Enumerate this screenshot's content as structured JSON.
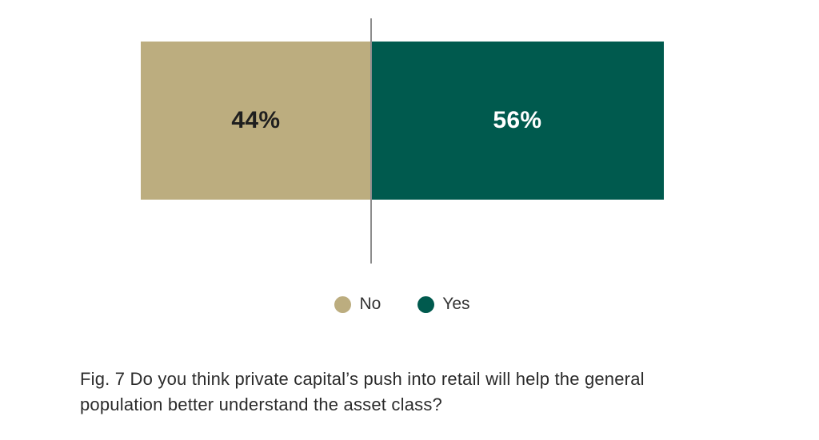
{
  "chart_data": {
    "type": "bar",
    "subtype": "100-percent-stacked-horizontal",
    "categories": [
      "No",
      "Yes"
    ],
    "values": [
      44,
      56
    ],
    "value_labels": [
      "44%",
      "56%"
    ],
    "series_colors": [
      "#bcad7f",
      "#005a4e"
    ],
    "value_label_colors": [
      "#1f1f1f",
      "#ffffff"
    ],
    "legend": {
      "position": "bottom",
      "items": [
        {
          "label": "No",
          "color": "#bcad7f"
        },
        {
          "label": "Yes",
          "color": "#005a4e"
        }
      ]
    },
    "divider": {
      "at_percent": 44,
      "color": "#8c8c8c"
    },
    "caption": "Fig. 7 Do you think private capital’s push into retail will help the general population better understand the asset class?",
    "caption_lines": [
      "Fig. 7 Do you think private capital’s push into retail will help the general",
      "population better understand the asset class?"
    ],
    "grid": false,
    "axes_shown": false
  },
  "colors": {
    "background": "#ffffff",
    "caption_text": "#2b2b2b",
    "legend_text": "#333333"
  }
}
